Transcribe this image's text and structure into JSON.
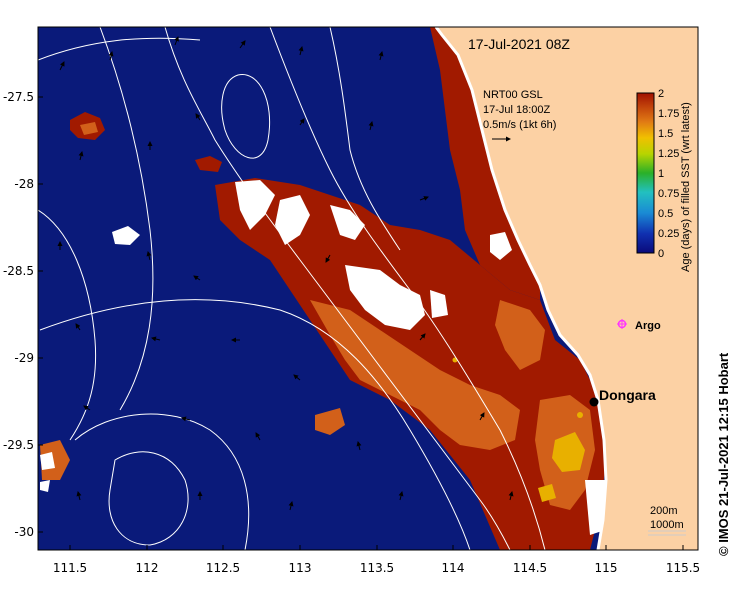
{
  "map": {
    "title": "17-Jul-2021 08Z",
    "product": {
      "name": "NRT00 GSL",
      "time": "17-Jul 18:00Z",
      "scale_label": "0.5m/s (1kt 6h)"
    },
    "colorbar": {
      "label": "Age (days) of filled SST (wrt latest)",
      "ticks": [
        "0",
        "0.25",
        "0.5",
        "0.75",
        "1",
        "1.25",
        "1.5",
        "1.75",
        "2"
      ],
      "range": [
        0,
        2
      ]
    },
    "places": {
      "dongara": "Dongara",
      "argo": "Argo"
    },
    "contours_legend": {
      "c1": "200m",
      "c2": "1000m"
    },
    "credit": "© IMOS 21-Jul-2021 12:15 Hobart",
    "x_ticks": [
      "111.5",
      "112",
      "112.5",
      "113",
      "113.5",
      "114",
      "114.5",
      "115",
      "115.5"
    ],
    "y_ticks": [
      "-27.5",
      "-28",
      "-28.5",
      "-29",
      "-29.5",
      "-30"
    ],
    "colors": {
      "ocean_fresh": "#0a1a7a",
      "old_sst": "#a11a00",
      "mid_sst": "#d2601a",
      "recent_warm": "#e8b000",
      "land": "#fcd1a4",
      "no_data": "#ffffff",
      "current_vector": "#000000",
      "bathymetry_contour": "#ffffff",
      "argo_marker": "#ff33ff"
    },
    "icons": [
      "dongara-marker-dot",
      "argo-float-marker",
      "current-arrow"
    ]
  }
}
